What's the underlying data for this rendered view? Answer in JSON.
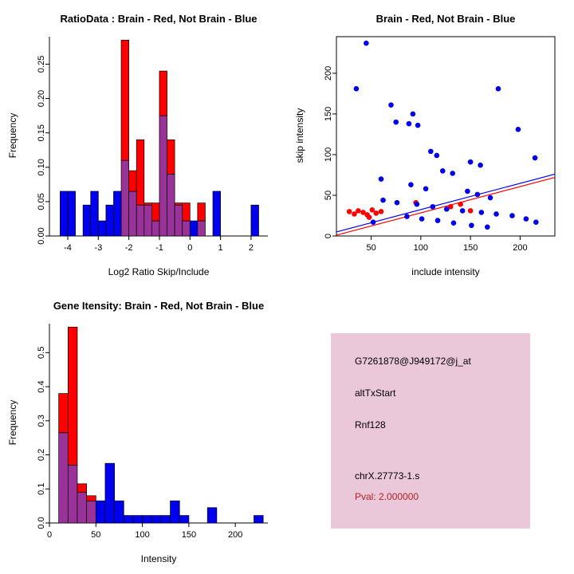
{
  "colors": {
    "red": "#FF0000",
    "blue": "#0000EE",
    "overlap": "#993399"
  },
  "chart_data": [
    {
      "type": "histogram",
      "title": "RatioData : Brain - Red, Not Brain - Blue",
      "xlabel": "Log2 Ratio Skip/Include",
      "ylabel": "Frequency",
      "xlim": [
        -4.6,
        2.55
      ],
      "ylim": [
        0,
        0.29
      ],
      "bin_width": 0.25,
      "xticks": [
        {
          "v": -4,
          "label": "-4"
        },
        {
          "v": -3,
          "label": "-3"
        },
        {
          "v": -2,
          "label": "-2"
        },
        {
          "v": -1,
          "label": "-1"
        },
        {
          "v": 0,
          "label": "0"
        },
        {
          "v": 1,
          "label": "1"
        },
        {
          "v": 2,
          "label": "2"
        }
      ],
      "yticks": [
        {
          "v": 0,
          "label": "0.00"
        },
        {
          "v": 0.05,
          "label": "0.05"
        },
        {
          "v": 0.1,
          "label": "0.10"
        },
        {
          "v": 0.15,
          "label": "0.15"
        },
        {
          "v": 0.2,
          "label": "0.20"
        },
        {
          "v": 0.25,
          "label": "0.25"
        }
      ],
      "bins": [
        {
          "x0": -4.25,
          "red": 0,
          "blue": 0.065
        },
        {
          "x0": -4.0,
          "red": 0,
          "blue": 0.065
        },
        {
          "x0": -3.5,
          "red": 0,
          "blue": 0.045
        },
        {
          "x0": -3.25,
          "red": 0,
          "blue": 0.065
        },
        {
          "x0": -3.0,
          "red": 0,
          "blue": 0.022
        },
        {
          "x0": -2.75,
          "red": 0,
          "blue": 0.045
        },
        {
          "x0": -2.5,
          "red": 0,
          "blue": 0.065
        },
        {
          "x0": -2.25,
          "red": 0.285,
          "blue": 0.11
        },
        {
          "x0": -2.0,
          "red": 0.095,
          "blue": 0.065
        },
        {
          "x0": -1.75,
          "red": 0.14,
          "blue": 0.045
        },
        {
          "x0": -1.5,
          "red": 0.048,
          "blue": 0.045
        },
        {
          "x0": -1.25,
          "red": 0.048,
          "blue": 0.022
        },
        {
          "x0": -1.0,
          "red": 0.24,
          "blue": 0.175
        },
        {
          "x0": -0.75,
          "red": 0.14,
          "blue": 0.09
        },
        {
          "x0": -0.5,
          "red": 0.048,
          "blue": 0.045
        },
        {
          "x0": -0.25,
          "red": 0.048,
          "blue": 0.022
        },
        {
          "x0": 0.0,
          "red": 0,
          "blue": 0.022
        },
        {
          "x0": 0.25,
          "red": 0.048,
          "blue": 0.022
        },
        {
          "x0": 0.75,
          "red": 0,
          "blue": 0.065
        },
        {
          "x0": 2.0,
          "red": 0,
          "blue": 0.045
        }
      ]
    },
    {
      "type": "scatter",
      "title": "Brain - Red, Not Brain - Blue",
      "xlabel": "include intensity",
      "ylabel": "skip intensity",
      "xlim": [
        15,
        235
      ],
      "ylim": [
        0,
        245
      ],
      "xticks": [
        {
          "v": 50,
          "label": "50"
        },
        {
          "v": 100,
          "label": "100"
        },
        {
          "v": 150,
          "label": "150"
        },
        {
          "v": 200,
          "label": "200"
        }
      ],
      "yticks": [
        {
          "v": 0,
          "label": "0"
        },
        {
          "v": 50,
          "label": "50"
        },
        {
          "v": 100,
          "label": "100"
        },
        {
          "v": 150,
          "label": "150"
        },
        {
          "v": 200,
          "label": "200"
        }
      ],
      "series": [
        {
          "name": "Brain",
          "color": "#FF0000",
          "points": [
            [
              28,
              30
            ],
            [
              33,
              27
            ],
            [
              37,
              31
            ],
            [
              42,
              29
            ],
            [
              46,
              26
            ],
            [
              51,
              32
            ],
            [
              55,
              28
            ],
            [
              60,
              30
            ],
            [
              48,
              23
            ],
            [
              95,
              41
            ],
            [
              130,
              36
            ],
            [
              140,
              39
            ],
            [
              150,
              31
            ]
          ]
        },
        {
          "name": "Not Brain",
          "color": "#0000EE",
          "points": [
            [
              45,
              237
            ],
            [
              35,
              181
            ],
            [
              178,
              181
            ],
            [
              70,
              161
            ],
            [
              92,
              150
            ],
            [
              75,
              140
            ],
            [
              88,
              138
            ],
            [
              97,
              136
            ],
            [
              198,
              131
            ],
            [
              110,
              104
            ],
            [
              116,
              99
            ],
            [
              215,
              96
            ],
            [
              150,
              91
            ],
            [
              160,
              87
            ],
            [
              122,
              80
            ],
            [
              132,
              77
            ],
            [
              60,
              70
            ],
            [
              90,
              63
            ],
            [
              105,
              58
            ],
            [
              147,
              55
            ],
            [
              157,
              51
            ],
            [
              170,
              47
            ],
            [
              62,
              44
            ],
            [
              76,
              41
            ],
            [
              96,
              39
            ],
            [
              112,
              36
            ],
            [
              126,
              33
            ],
            [
              142,
              31
            ],
            [
              161,
              29
            ],
            [
              176,
              27
            ],
            [
              192,
              25
            ],
            [
              206,
              21
            ],
            [
              216,
              17
            ],
            [
              86,
              24
            ],
            [
              101,
              21
            ],
            [
              117,
              19
            ],
            [
              133,
              16
            ],
            [
              151,
              13
            ],
            [
              167,
              11
            ],
            [
              52,
              17
            ]
          ]
        }
      ],
      "lines": [
        {
          "color": "#FF0000",
          "x1": 15,
          "y1": 1,
          "x2": 235,
          "y2": 72
        },
        {
          "color": "#0000EE",
          "x1": 15,
          "y1": 5,
          "x2": 235,
          "y2": 76
        }
      ]
    },
    {
      "type": "histogram",
      "title": "Gene Itensity: Brain - Red, Not Brain - Blue",
      "xlabel": "Intensity",
      "ylabel": "Frequency",
      "xlim": [
        0,
        235
      ],
      "ylim": [
        0,
        0.585
      ],
      "bin_width": 10,
      "xticks": [
        {
          "v": 0,
          "label": "0"
        },
        {
          "v": 50,
          "label": "50"
        },
        {
          "v": 100,
          "label": "100"
        },
        {
          "v": 150,
          "label": "150"
        },
        {
          "v": 200,
          "label": "200"
        }
      ],
      "yticks": [
        {
          "v": 0,
          "label": "0.0"
        },
        {
          "v": 0.1,
          "label": "0.1"
        },
        {
          "v": 0.2,
          "label": "0.2"
        },
        {
          "v": 0.3,
          "label": "0.3"
        },
        {
          "v": 0.4,
          "label": "0.4"
        },
        {
          "v": 0.5,
          "label": "0.5"
        }
      ],
      "bins": [
        {
          "x0": 10,
          "red": 0.38,
          "blue": 0.265
        },
        {
          "x0": 20,
          "red": 0.575,
          "blue": 0.17
        },
        {
          "x0": 30,
          "red": 0.115,
          "blue": 0.09
        },
        {
          "x0": 40,
          "red": 0.08,
          "blue": 0.065
        },
        {
          "x0": 50,
          "red": 0,
          "blue": 0.065
        },
        {
          "x0": 60,
          "red": 0,
          "blue": 0.175
        },
        {
          "x0": 70,
          "red": 0,
          "blue": 0.065
        },
        {
          "x0": 80,
          "red": 0,
          "blue": 0.022
        },
        {
          "x0": 90,
          "red": 0,
          "blue": 0.022
        },
        {
          "x0": 100,
          "red": 0,
          "blue": 0.022
        },
        {
          "x0": 110,
          "red": 0,
          "blue": 0.022
        },
        {
          "x0": 120,
          "red": 0,
          "blue": 0.022
        },
        {
          "x0": 130,
          "red": 0,
          "blue": 0.065
        },
        {
          "x0": 140,
          "red": 0,
          "blue": 0.022
        },
        {
          "x0": 170,
          "red": 0,
          "blue": 0.045
        },
        {
          "x0": 220,
          "red": 0,
          "blue": 0.022
        }
      ]
    }
  ],
  "info_box": {
    "bg_color": "#EAC8DA",
    "lines": [
      {
        "text": "G7261878@J949172@j_at",
        "color": "#000000"
      },
      {
        "text": "altTxStart",
        "color": "#000000"
      },
      {
        "text": "Rnf128",
        "color": "#000000"
      },
      {
        "text": "chrX.27773-1.s",
        "color": "#000000"
      },
      {
        "text": "Pval: 2.000000",
        "color": "#B22222"
      }
    ]
  }
}
